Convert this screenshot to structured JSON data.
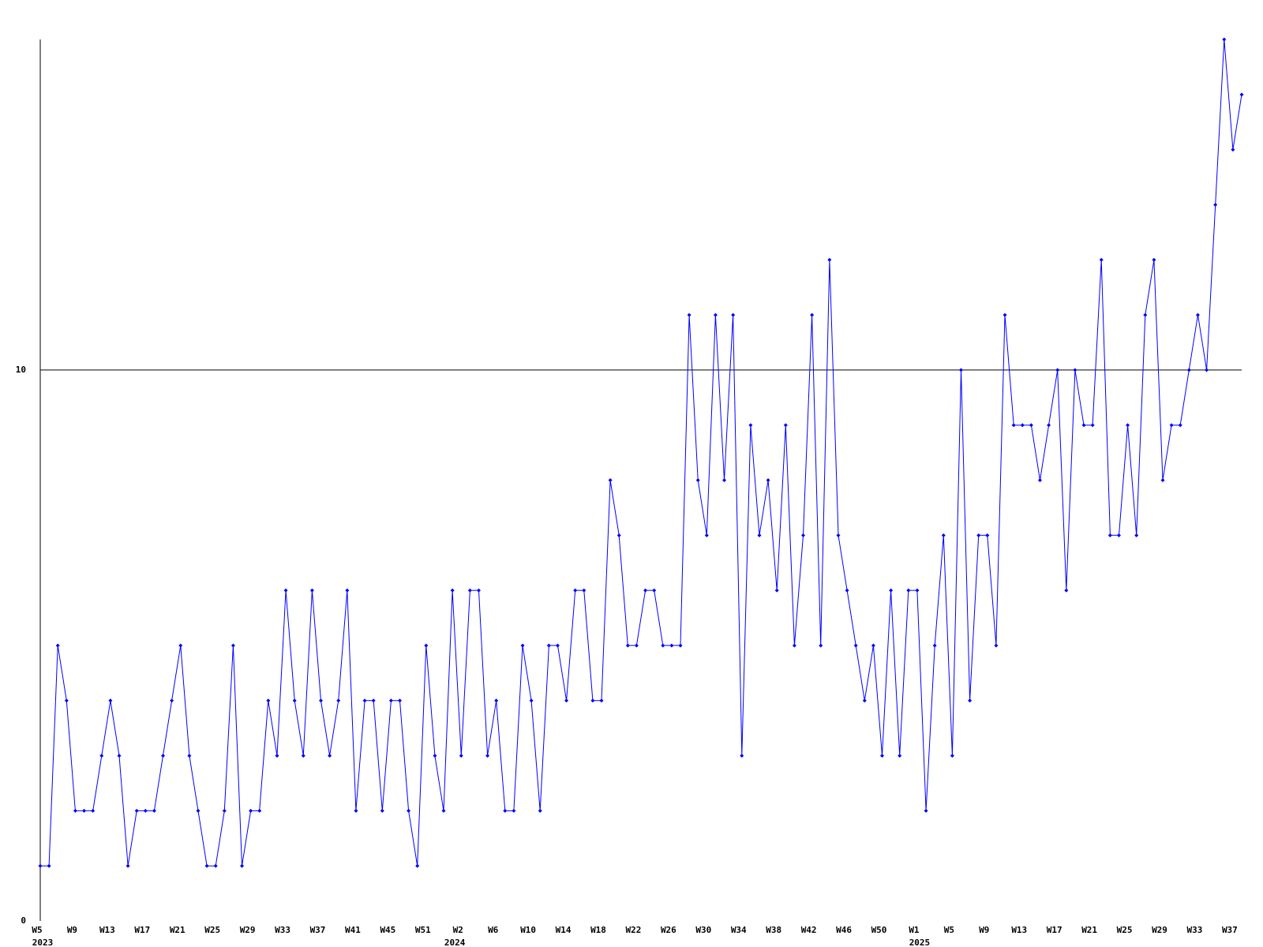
{
  "chart_data": {
    "type": "line",
    "categories": [
      "W5",
      null,
      null,
      null,
      "W9",
      null,
      null,
      null,
      "W13",
      null,
      null,
      null,
      "W17",
      null,
      null,
      null,
      "W21",
      null,
      null,
      null,
      "W25",
      null,
      null,
      null,
      "W29",
      null,
      null,
      null,
      "W33",
      null,
      null,
      null,
      "W37",
      null,
      null,
      null,
      "W41",
      null,
      null,
      null,
      "W45",
      null,
      null,
      null,
      "W51",
      null,
      null,
      null,
      "W2",
      null,
      null,
      null,
      "W6",
      null,
      null,
      null,
      "W10",
      null,
      null,
      null,
      "W14",
      null,
      null,
      null,
      "W18",
      null,
      null,
      null,
      "W22",
      null,
      null,
      null,
      "W26",
      null,
      null,
      null,
      "W30",
      null,
      null,
      null,
      "W34",
      null,
      null,
      null,
      "W38",
      null,
      null,
      null,
      "W42",
      null,
      null,
      null,
      "W46",
      null,
      null,
      null,
      "W50",
      null,
      null,
      null,
      "W1",
      null,
      null,
      null,
      "W5",
      null,
      null,
      null,
      "W9",
      null,
      null,
      null,
      "W13",
      null,
      null,
      null,
      "W17",
      null,
      null,
      null,
      "W21",
      null,
      null,
      null,
      "W25",
      null,
      null,
      null,
      "W29",
      null,
      null,
      null,
      "W33",
      null,
      null,
      null,
      "W37",
      null
    ],
    "years": [
      "2023",
      null,
      null,
      null,
      null,
      null,
      null,
      null,
      null,
      null,
      null,
      null,
      null,
      null,
      null,
      null,
      null,
      null,
      null,
      null,
      null,
      null,
      null,
      null,
      null,
      null,
      null,
      null,
      null,
      null,
      null,
      null,
      null,
      null,
      null,
      null,
      null,
      null,
      null,
      null,
      null,
      null,
      null,
      null,
      null,
      null,
      null,
      "2024",
      null,
      null,
      null,
      null,
      null,
      null,
      null,
      null,
      null,
      null,
      null,
      null,
      null,
      null,
      null,
      null,
      null,
      null,
      null,
      null,
      null,
      null,
      null,
      null,
      null,
      null,
      null,
      null,
      null,
      null,
      null,
      null,
      null,
      null,
      null,
      null,
      null,
      null,
      null,
      null,
      null,
      null,
      null,
      null,
      null,
      null,
      null,
      null,
      null,
      null,
      null,
      null,
      "2025",
      null,
      null,
      null,
      null,
      null,
      null,
      null,
      null,
      null,
      null,
      null,
      null,
      null,
      null,
      null,
      null,
      null,
      null,
      null,
      null,
      null,
      null,
      null,
      null,
      null,
      null,
      null,
      null,
      null,
      null,
      null,
      null,
      null,
      null,
      null,
      null,
      null
    ],
    "series": [
      {
        "color": "#0000ff",
        "values": [
          1,
          1,
          5,
          4,
          2,
          2,
          2,
          3,
          4,
          3,
          1,
          2,
          2,
          2,
          3,
          4,
          5,
          3,
          2,
          1,
          1,
          2,
          5,
          1,
          2,
          2,
          4,
          3,
          6,
          4,
          3,
          6,
          4,
          3,
          4,
          6,
          2,
          4,
          4,
          2,
          4,
          4,
          2,
          1,
          5,
          3,
          2,
          6,
          3,
          6,
          6,
          3,
          4,
          2,
          2,
          5,
          4,
          2,
          5,
          5,
          4,
          6,
          6,
          4,
          4,
          8,
          7,
          5,
          5,
          6,
          6,
          5,
          5,
          5,
          11,
          8,
          7,
          11,
          8,
          11,
          3,
          9,
          7,
          8,
          6,
          9,
          5,
          7,
          11,
          5,
          12,
          7,
          6,
          5,
          4,
          5,
          3,
          6,
          3,
          6,
          6,
          2,
          5,
          7,
          3,
          10,
          4,
          7,
          7,
          5,
          11,
          9,
          9,
          9,
          8,
          9,
          10,
          6,
          10,
          9,
          9,
          12,
          7,
          7,
          9,
          7,
          11,
          12,
          8,
          9,
          9,
          10,
          11,
          10,
          13,
          16,
          14,
          15
        ]
      }
    ],
    "ylim": [
      0,
      16
    ],
    "yticks": [
      0,
      10
    ],
    "grid": true
  }
}
